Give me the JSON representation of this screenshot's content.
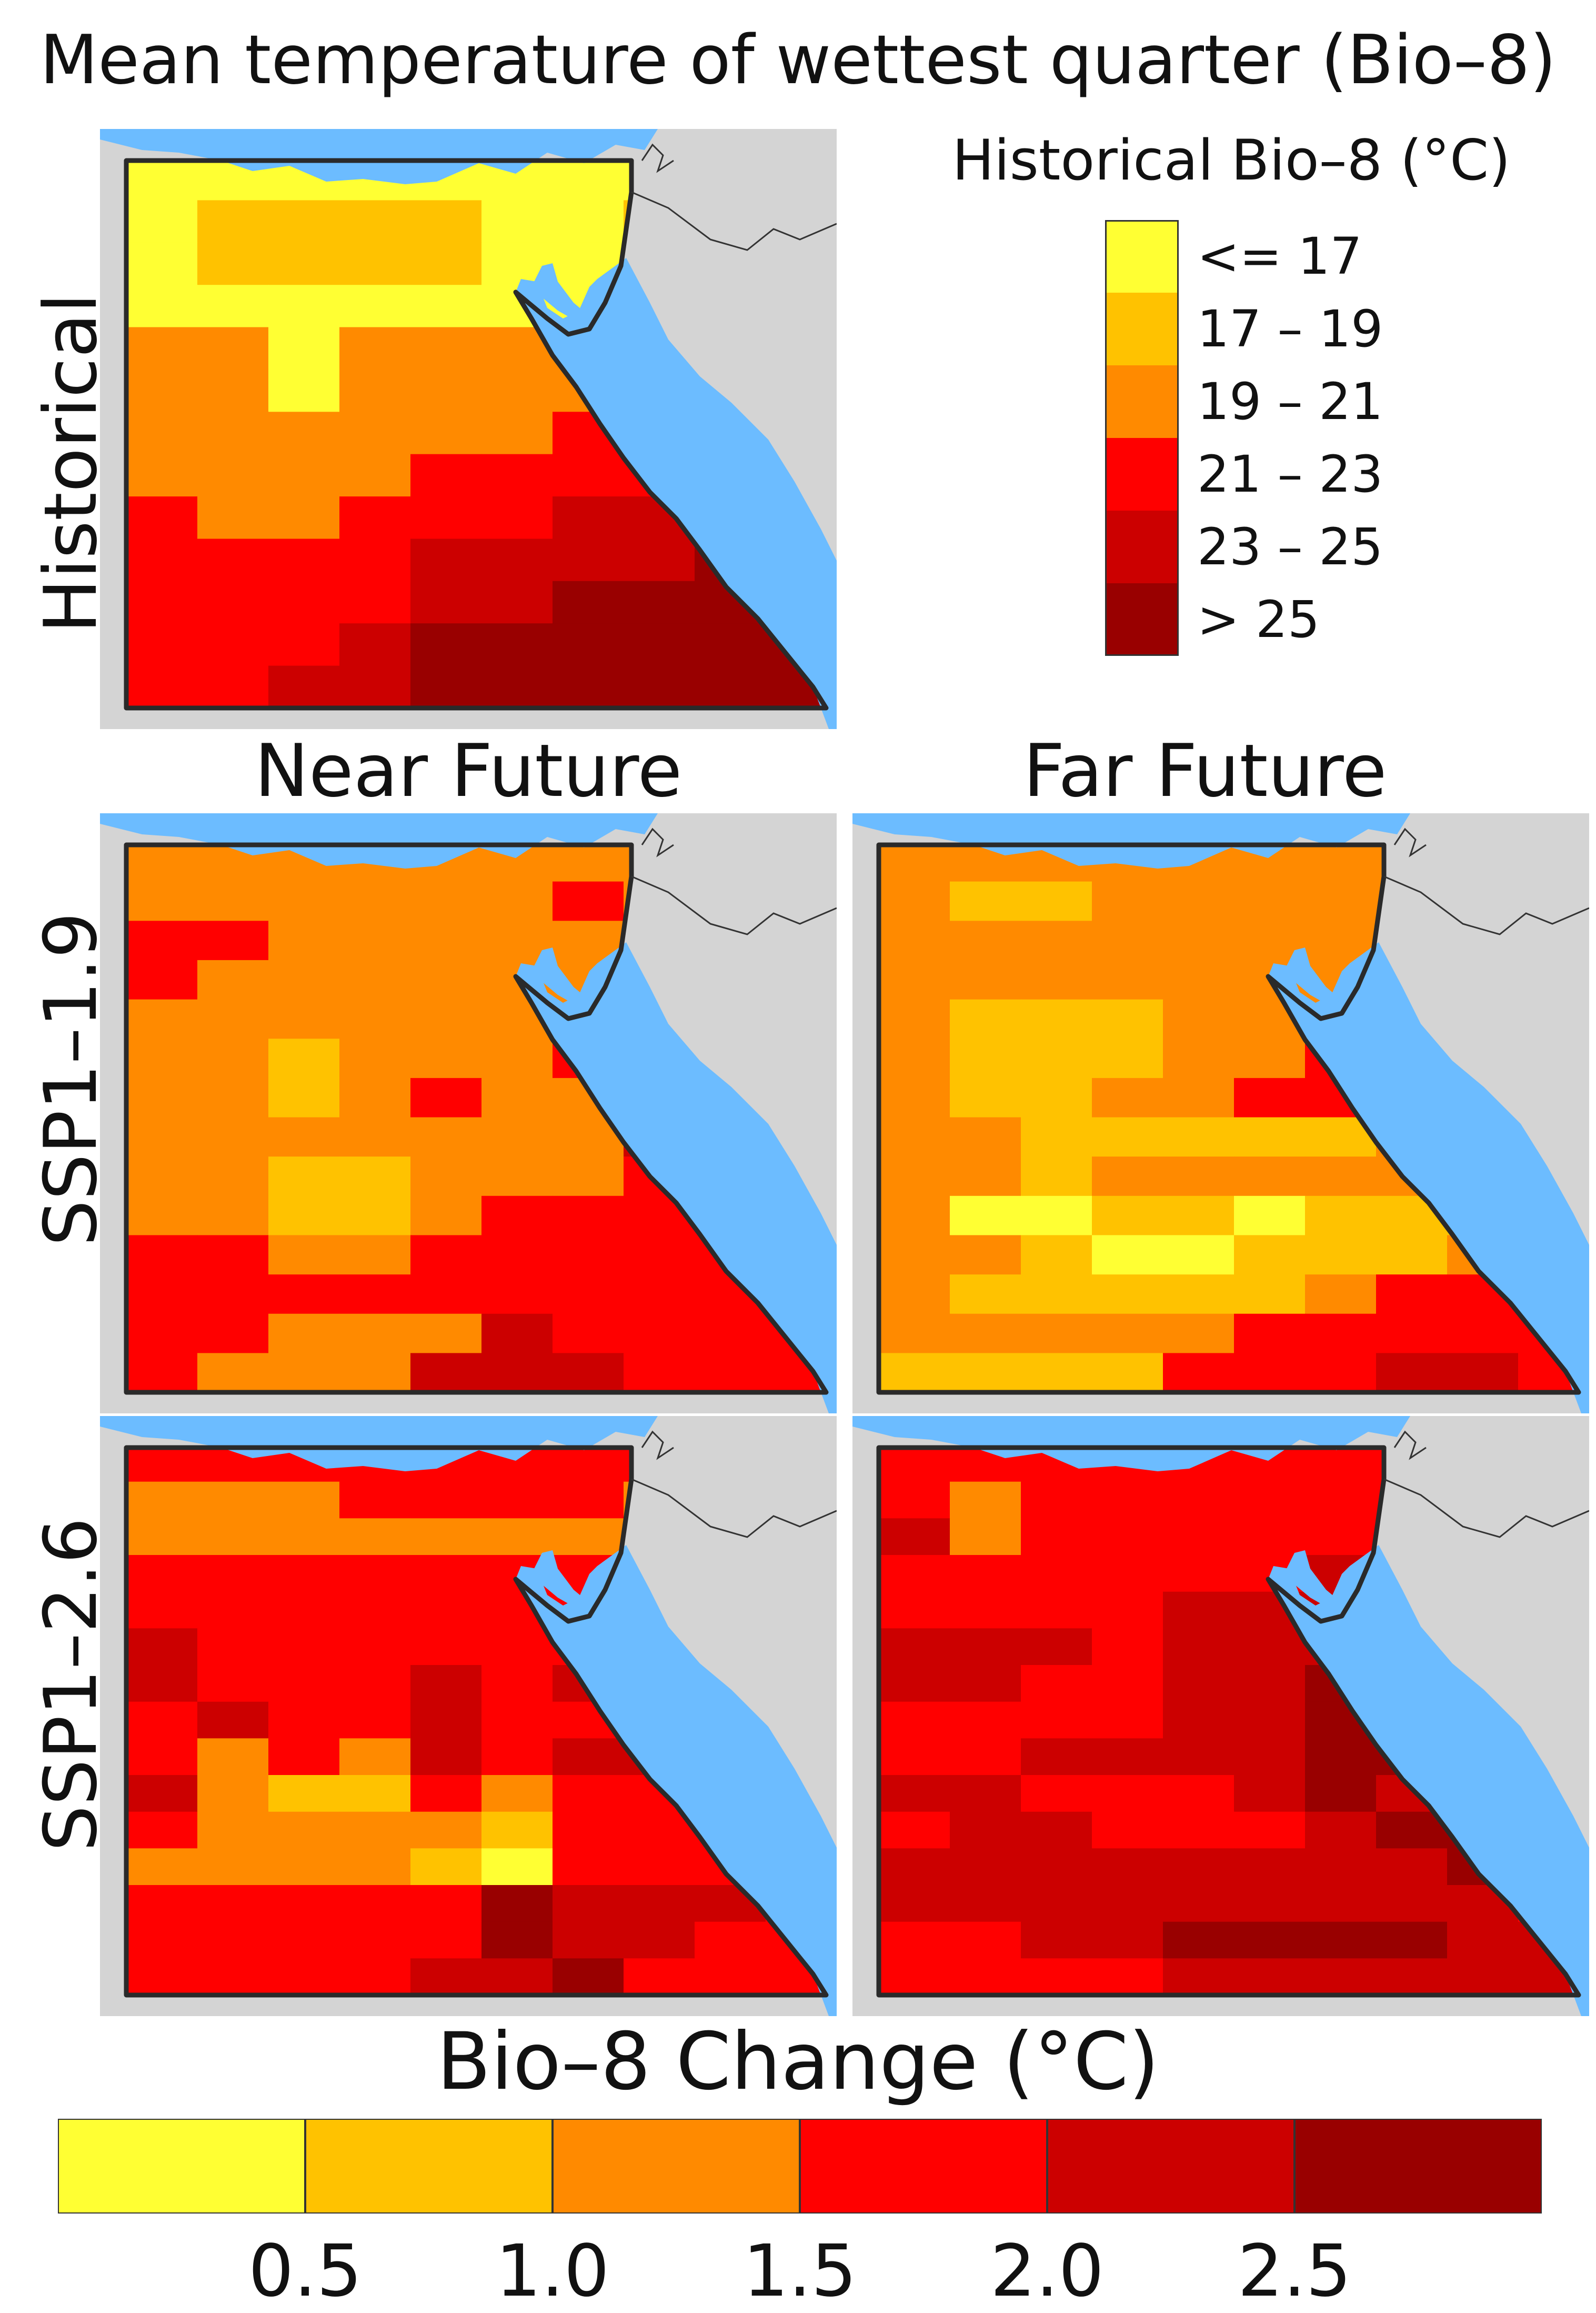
{
  "title": "Mean temperature of wettest quarter (Bio–8)",
  "rows": [
    {
      "label": "Historical"
    },
    {
      "label": "SSP1–1.9"
    },
    {
      "label": "SSP1–2.6"
    }
  ],
  "columns": [
    {
      "label": "Near Future"
    },
    {
      "label": "Far Future"
    }
  ],
  "historical_legend": {
    "title": "Historical Bio–8 (°C)",
    "classes": [
      {
        "label": "<= 17",
        "color": "#ffff33"
      },
      {
        "label": "17 – 19",
        "color": "#ffc200"
      },
      {
        "label": "19 – 21",
        "color": "#ff8a00"
      },
      {
        "label": "21 – 23",
        "color": "#ff0000"
      },
      {
        "label": "23 – 25",
        "color": "#cc0000"
      },
      {
        "label": "> 25",
        "color": "#990000"
      }
    ]
  },
  "change_colorbar": {
    "title": "Bio–8 Change (°C)",
    "colors": [
      "#ffff33",
      "#ffc200",
      "#ff8a00",
      "#ff0000",
      "#cc0000",
      "#990000"
    ],
    "ticks": [
      "0.5",
      "1.0",
      "1.5",
      "2.0",
      "2.5"
    ]
  },
  "map_colors": {
    "sea": "#6cbcff",
    "land_outside": "#d4d4d4",
    "border": "#2a2a2a"
  },
  "grids": {
    "historical": [
      "0000000000",
      "0111100110",
      "0111100110",
      "0000000000",
      "2202222222",
      "2202222222",
      "2222223333",
      "2222333333",
      "3223334440",
      "3333444455",
      "3333445555",
      "3334555555",
      "3344555555"
    ],
    "ssp119_near": [
      "2222222222",
      "2222223222",
      "3322222222",
      "3222222222",
      "2222222224",
      "2212223333",
      "2212322333",
      "2222222444",
      "2211222333",
      "2211233333",
      "3322333333",
      "3333333334",
      "3322243333",
      "3222444333"
    ],
    "ssp119_far": [
      "2222222222",
      "2112222212",
      "2222222322",
      "2222222332",
      "2111222332",
      "2111223432",
      "2112233333",
      "2211111233",
      "2212222233",
      "2001101113",
      "2210011123",
      "2111112333",
      "2222233333",
      "1111333443"
    ],
    "ssp126_near": [
      "3333333333",
      "2223333233",
      "2222222222",
      "3333333333",
      "3333333333",
      "4333333433",
      "4333434443",
      "3433433333",
      "3232434433",
      "4211323333",
      "3222213333",
      "2222103333",
      "3333354443",
      "3333354433",
      "3333445333"
    ],
    "ssp126_far": [
      "3333333333",
      "3233333333",
      "4233333333",
      "3333334443",
      "3333444455",
      "4443444555",
      "4433445555",
      "3333445554",
      "3344445554",
      "4433345444",
      "3443334554",
      "4444444454",
      "4444444443",
      "3344555544",
      "3333444444"
    ]
  }
}
